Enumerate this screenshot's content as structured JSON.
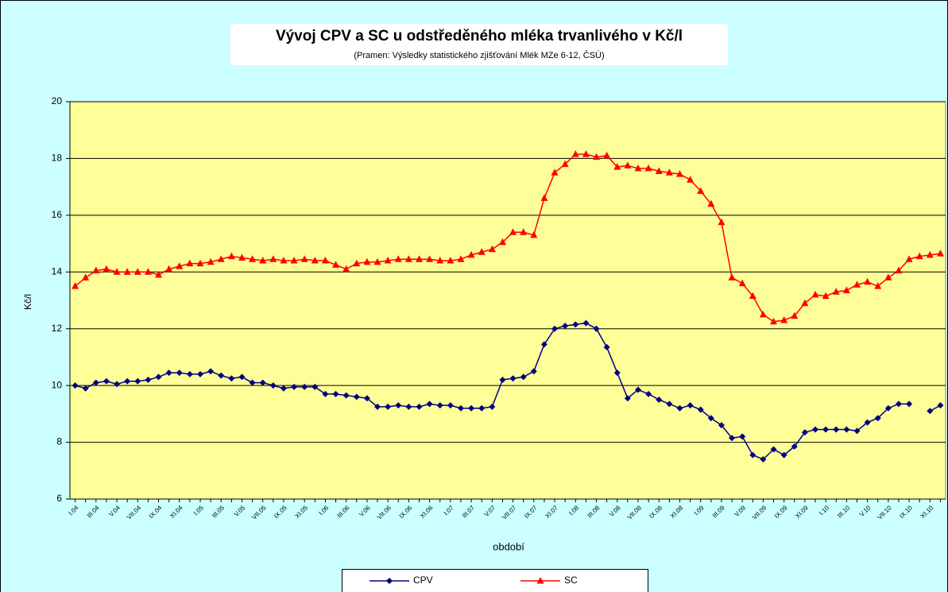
{
  "chart_data": {
    "type": "line",
    "title": "Vývoj CPV a SC u odstředěného mléka trvanlivého v Kč/l",
    "subtitle": "(Pramen: Výsledky statistického zjišťování Mlék MZe 6-12, ČSÚ)",
    "x_label": "období",
    "y_label": "Kč/l",
    "categories": [
      "I.04",
      null,
      "III.04",
      null,
      "V.04",
      null,
      "VII.04",
      null,
      "IX.04",
      null,
      "XI.04",
      null,
      "I.05",
      null,
      "III.05",
      null,
      "V.05",
      null,
      "VII.05",
      null,
      "IX.05",
      null,
      "XI.05",
      null,
      "I.06",
      null,
      "III.06",
      null,
      "V.06",
      null,
      "VII.06",
      null,
      "IX.06",
      null,
      "XI.06",
      null,
      "I.07",
      null,
      "III.07",
      null,
      "V.07",
      null,
      "VII.07",
      null,
      "IX.07",
      null,
      "XI.07",
      null,
      "I.08",
      null,
      "III.08",
      null,
      "V.08",
      null,
      "VII.08",
      null,
      "IX.08",
      null,
      "XI.08",
      null,
      "I.09",
      null,
      "III.09",
      null,
      "V.09",
      null,
      "VII.09",
      null,
      "IX.09",
      null,
      "XI.09",
      null,
      "I.10",
      null,
      "III.10",
      null,
      "V.10",
      null,
      "VII.10",
      null,
      "IX.10",
      null,
      "XI.10",
      null
    ],
    "series": [
      {
        "name": "CPV",
        "color": "#000080",
        "marker": "diamond",
        "values": [
          10.0,
          9.9,
          10.1,
          10.15,
          10.05,
          10.15,
          10.15,
          10.2,
          10.3,
          10.45,
          10.45,
          10.4,
          10.4,
          10.5,
          10.35,
          10.25,
          10.3,
          10.1,
          10.1,
          10.0,
          9.9,
          9.95,
          9.95,
          9.95,
          9.7,
          9.7,
          9.65,
          9.6,
          9.55,
          9.25,
          9.25,
          9.3,
          9.25,
          9.25,
          9.35,
          9.3,
          9.3,
          9.2,
          9.2,
          9.2,
          9.25,
          10.2,
          10.25,
          10.3,
          10.5,
          11.45,
          12.0,
          12.1,
          12.15,
          12.2,
          12.0,
          11.35,
          10.45,
          9.55,
          9.85,
          9.7,
          9.5,
          9.35,
          9.2,
          9.3,
          9.15,
          8.85,
          8.6,
          8.15,
          8.2,
          7.55,
          7.4,
          7.75,
          7.55,
          7.85,
          8.35,
          8.45,
          8.45,
          8.45,
          8.45,
          8.4,
          8.7,
          8.85,
          9.2,
          9.35,
          9.35,
          null,
          9.1,
          9.3
        ]
      },
      {
        "name": "SC",
        "color": "#ff0000",
        "marker": "triangle",
        "values": [
          13.5,
          13.8,
          14.05,
          14.1,
          14.0,
          14.0,
          14.0,
          14.0,
          13.9,
          14.1,
          14.2,
          14.3,
          14.3,
          14.35,
          14.45,
          14.55,
          14.5,
          14.45,
          14.4,
          14.45,
          14.4,
          14.4,
          14.45,
          14.4,
          14.4,
          14.25,
          14.1,
          14.3,
          14.35,
          14.35,
          14.4,
          14.45,
          14.45,
          14.45,
          14.45,
          14.4,
          14.4,
          14.45,
          14.6,
          14.7,
          14.8,
          15.05,
          15.4,
          15.4,
          15.3,
          16.6,
          17.5,
          17.8,
          18.15,
          18.15,
          18.05,
          18.1,
          17.7,
          17.75,
          17.65,
          17.65,
          17.55,
          17.5,
          17.45,
          17.25,
          16.85,
          16.4,
          15.75,
          13.8,
          13.6,
          13.15,
          12.5,
          12.25,
          12.3,
          12.45,
          12.9,
          13.2,
          13.15,
          13.3,
          13.35,
          13.55,
          13.65,
          13.5,
          13.8,
          14.05,
          14.45,
          14.55,
          14.6,
          14.65
        ]
      }
    ],
    "ylim": [
      6,
      20
    ],
    "yticks": [
      6,
      8,
      10,
      12,
      14,
      16,
      18,
      20
    ],
    "grid": true,
    "plot_color": "#ffff99",
    "legend": "bottom"
  }
}
